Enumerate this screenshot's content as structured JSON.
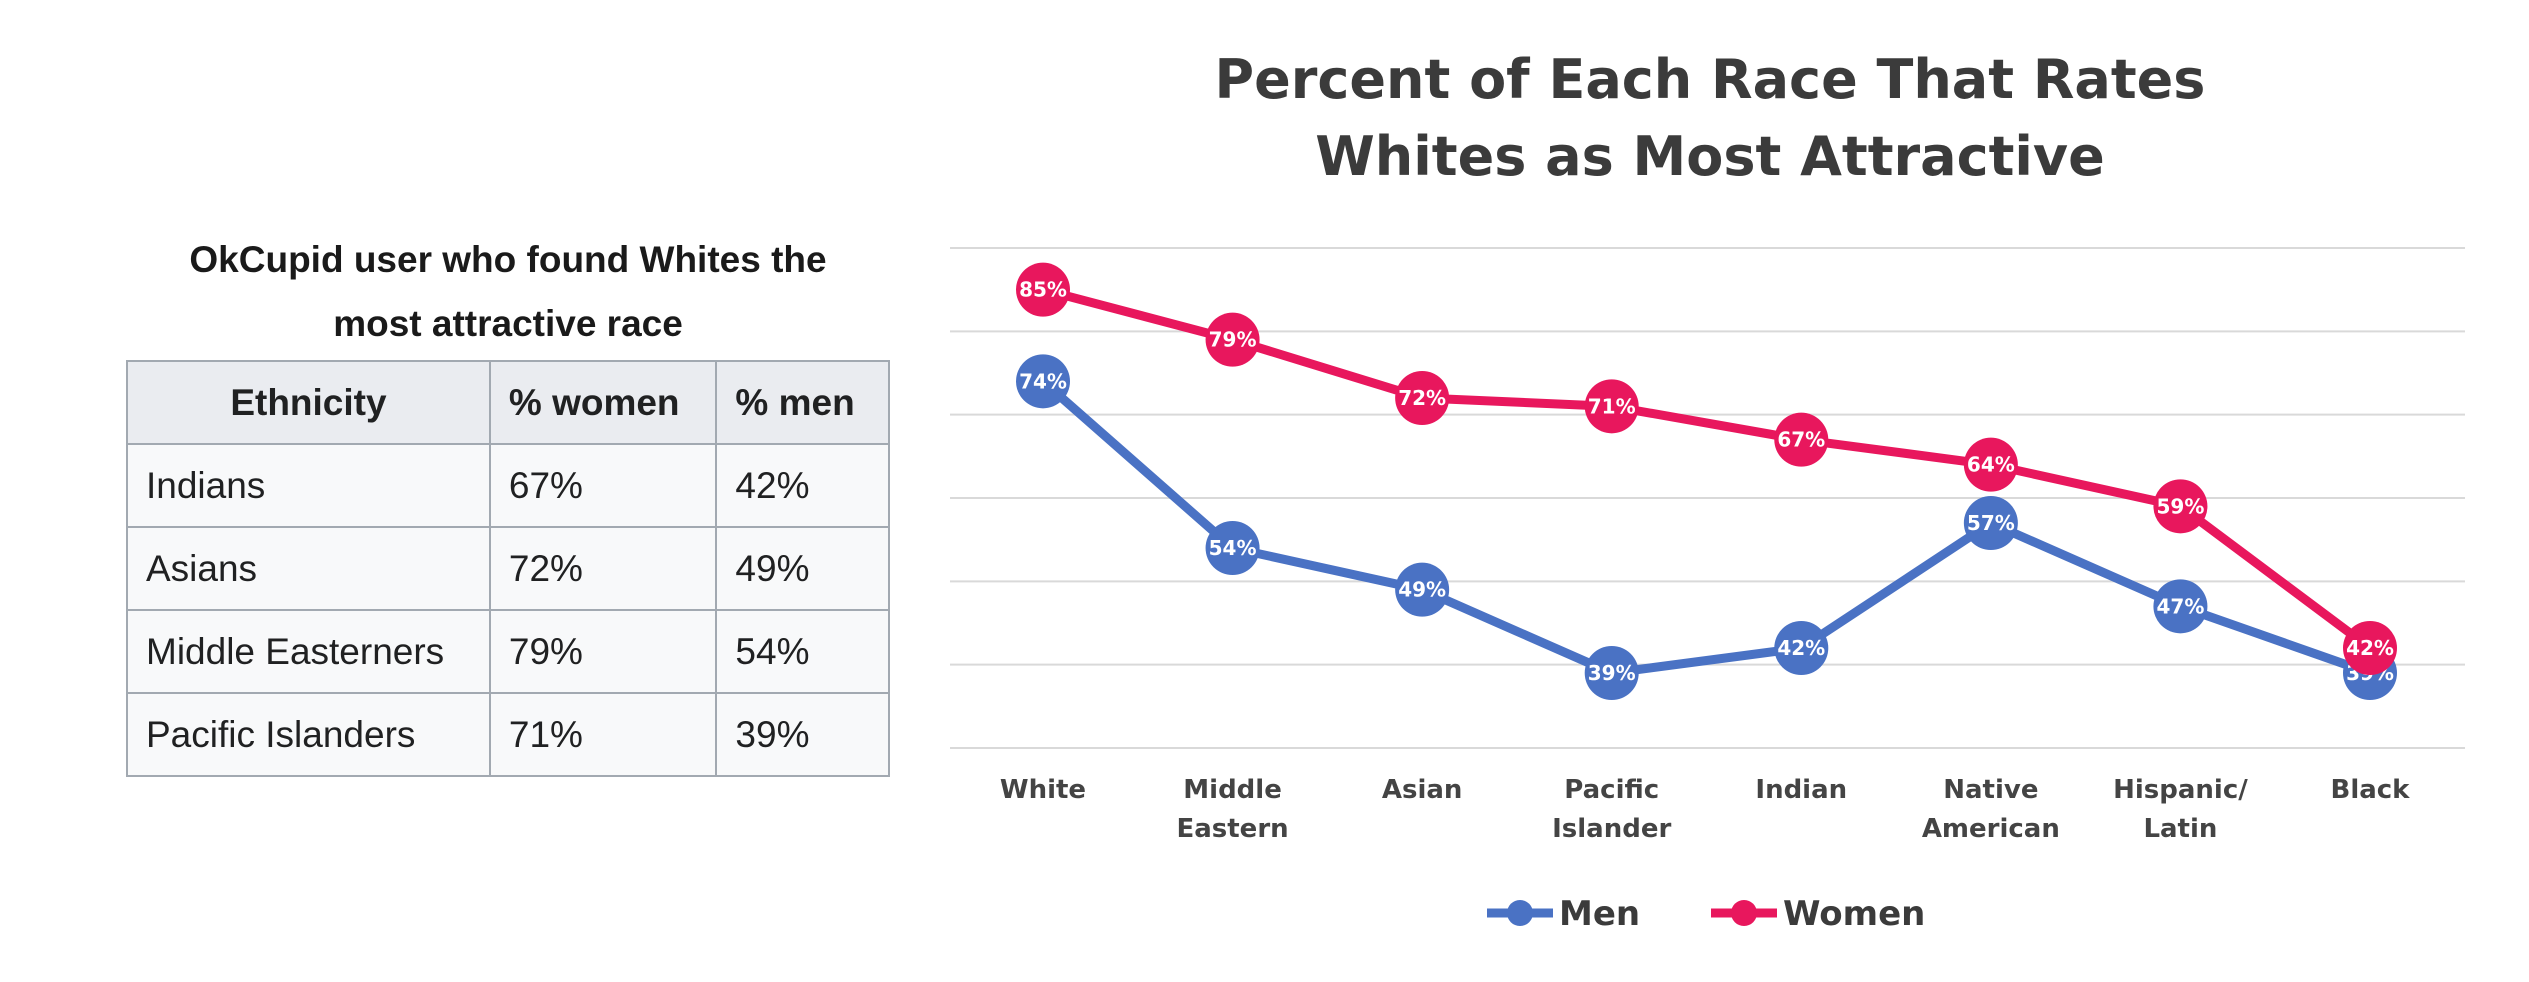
{
  "table": {
    "caption_line1": "OkCupid user who found Whites the",
    "caption_line2": "most attractive race",
    "headers": [
      "Ethnicity",
      "% women",
      "% men"
    ],
    "rows": [
      [
        "Indians",
        "67%",
        "42%"
      ],
      [
        "Asians",
        "72%",
        "49%"
      ],
      [
        "Middle Easterners",
        "79%",
        "54%"
      ],
      [
        "Pacific Islanders",
        "71%",
        "39%"
      ]
    ]
  },
  "chart_data": {
    "type": "line",
    "title_lines": [
      "Percent of Each Race That Rates",
      "Whites as Most Attractive"
    ],
    "categories": [
      [
        "White"
      ],
      [
        "Middle",
        "Eastern"
      ],
      [
        "Asian"
      ],
      [
        "Pacific",
        "Islander"
      ],
      [
        "Indian"
      ],
      [
        "Native",
        "American"
      ],
      [
        "Hispanic/",
        "Latin"
      ],
      [
        "Black"
      ]
    ],
    "series": [
      {
        "name": "Men",
        "color": "#4a72c4",
        "values": [
          74,
          54,
          49,
          39,
          42,
          57,
          47,
          39
        ],
        "labels": [
          "74%",
          "54%",
          "49%",
          "39%",
          "42%",
          "57%",
          "47%",
          "39%"
        ]
      },
      {
        "name": "Women",
        "color": "#e8175d",
        "values": [
          85,
          79,
          72,
          71,
          67,
          64,
          59,
          42
        ],
        "labels": [
          "85%",
          "79%",
          "72%",
          "71%",
          "67%",
          "64%",
          "59%",
          "42%"
        ]
      }
    ],
    "ylim": [
      30,
      90
    ],
    "grid": true,
    "legend_position": "bottom"
  }
}
